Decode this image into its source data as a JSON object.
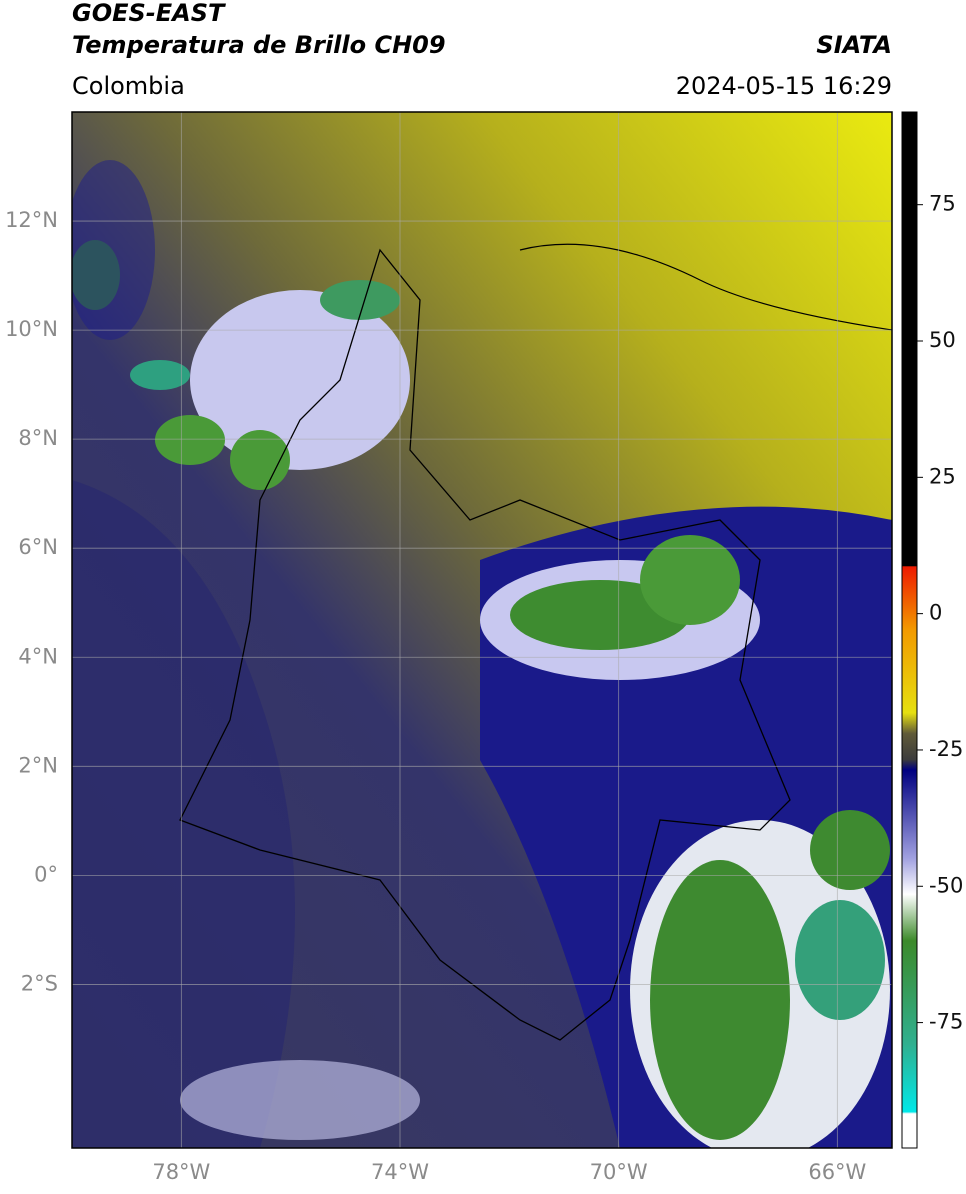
{
  "header": {
    "title_line1": "GOES-EAST",
    "title_line2": "Temperatura de Brillo CH09",
    "source": "SIATA",
    "region": "Colombia",
    "timestamp": "2024-05-15 16:29"
  },
  "map": {
    "lonlim": [
      -80,
      -65
    ],
    "latlim": [
      -5,
      14
    ],
    "grid": true,
    "lon_ticks": [
      {
        "value": -78,
        "label": "78°W"
      },
      {
        "value": -74,
        "label": "74°W"
      },
      {
        "value": -70,
        "label": "70°W"
      },
      {
        "value": -66,
        "label": "66°W"
      }
    ],
    "lat_ticks": [
      {
        "value": 12,
        "label": "12°N"
      },
      {
        "value": 10,
        "label": "10°N"
      },
      {
        "value": 8,
        "label": "8°N"
      },
      {
        "value": 6,
        "label": "6°N"
      },
      {
        "value": 4,
        "label": "4°N"
      },
      {
        "value": 2,
        "label": "2°N"
      },
      {
        "value": 0,
        "label": "0°"
      },
      {
        "value": -2,
        "label": "2°S"
      }
    ]
  },
  "colorbar": {
    "lim": [
      -98,
      92
    ],
    "ticks": [
      -75,
      -50,
      -25,
      0,
      25,
      50,
      75
    ]
  }
}
